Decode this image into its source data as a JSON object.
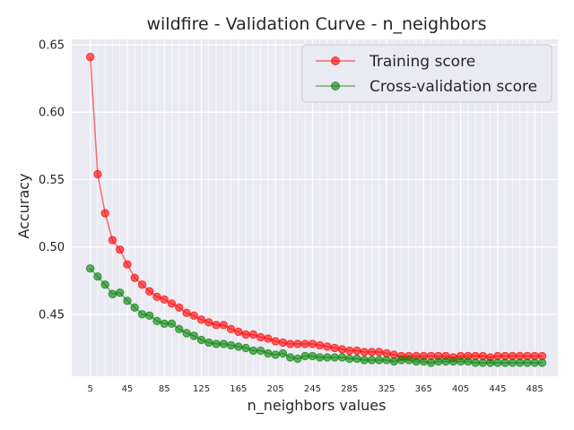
{
  "chart_data": {
    "type": "line",
    "title": "wildfire - Validation Curve - n_neighbors",
    "xlabel": "n_neighbors values",
    "ylabel": "Accuracy",
    "x": [
      5,
      13,
      21,
      29,
      37,
      45,
      53,
      61,
      69,
      77,
      85,
      93,
      101,
      109,
      117,
      125,
      133,
      141,
      149,
      157,
      165,
      173,
      181,
      189,
      197,
      205,
      213,
      221,
      229,
      237,
      245,
      253,
      261,
      269,
      277,
      285,
      293,
      301,
      309,
      317,
      325,
      333,
      341,
      349,
      357,
      365,
      373,
      381,
      389,
      397,
      405,
      413,
      421,
      429,
      437,
      445,
      453,
      461,
      469,
      477,
      485,
      493
    ],
    "xlim": [
      -15,
      510
    ],
    "ylim": [
      0.404,
      0.654
    ],
    "xticks": [
      "5",
      "45",
      "85",
      "125",
      "165",
      "205",
      "245",
      "285",
      "325",
      "365",
      "405",
      "445",
      "485"
    ],
    "yticks": [
      "0.45",
      "0.50",
      "0.55",
      "0.60",
      "0.65"
    ],
    "grid": true,
    "legend_position": "top-right",
    "series": [
      {
        "name": "Training score",
        "color": "#ff0000",
        "values": [
          0.641,
          0.554,
          0.525,
          0.505,
          0.498,
          0.487,
          0.477,
          0.472,
          0.467,
          0.463,
          0.461,
          0.458,
          0.455,
          0.451,
          0.449,
          0.446,
          0.444,
          0.442,
          0.442,
          0.439,
          0.437,
          0.435,
          0.435,
          0.433,
          0.432,
          0.43,
          0.429,
          0.428,
          0.428,
          0.428,
          0.428,
          0.427,
          0.426,
          0.425,
          0.424,
          0.423,
          0.423,
          0.422,
          0.422,
          0.422,
          0.421,
          0.42,
          0.419,
          0.419,
          0.419,
          0.419,
          0.419,
          0.419,
          0.419,
          0.418,
          0.419,
          0.419,
          0.419,
          0.419,
          0.418,
          0.419,
          0.419,
          0.419,
          0.419,
          0.419,
          0.419,
          0.419
        ]
      },
      {
        "name": "Cross-validation score",
        "color": "#008000",
        "values": [
          0.484,
          0.478,
          0.472,
          0.465,
          0.466,
          0.46,
          0.455,
          0.45,
          0.449,
          0.445,
          0.443,
          0.443,
          0.439,
          0.436,
          0.434,
          0.431,
          0.429,
          0.428,
          0.428,
          0.427,
          0.426,
          0.425,
          0.423,
          0.423,
          0.421,
          0.42,
          0.421,
          0.418,
          0.417,
          0.419,
          0.419,
          0.418,
          0.418,
          0.418,
          0.418,
          0.417,
          0.417,
          0.416,
          0.416,
          0.416,
          0.416,
          0.415,
          0.416,
          0.416,
          0.415,
          0.415,
          0.414,
          0.415,
          0.415,
          0.415,
          0.415,
          0.415,
          0.414,
          0.414,
          0.414,
          0.414,
          0.414,
          0.414,
          0.414,
          0.414,
          0.414,
          0.414
        ]
      }
    ]
  }
}
